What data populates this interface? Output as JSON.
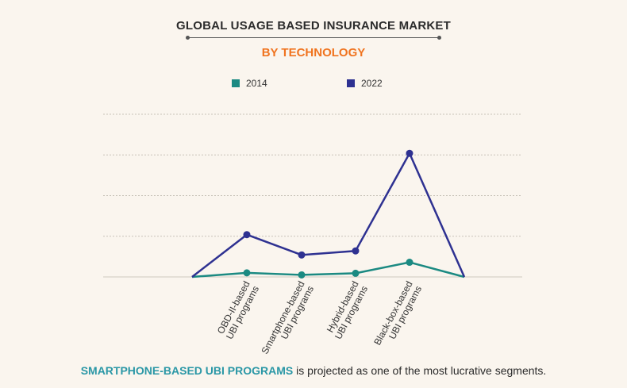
{
  "chart_data": {
    "type": "line",
    "title": "GLOBAL USAGE BASED INSURANCE MARKET",
    "subtitle": "BY TECHNOLOGY",
    "categories": [
      "",
      "OBD-II-based\nUBI programs",
      "Smartphone-based\nUBI programs",
      "Hybrid-based\nUBI programs",
      "Black-box-based\nUBI programs",
      ""
    ],
    "series": [
      {
        "name": "2014",
        "color": "#1b8a82",
        "values": [
          0,
          0.5,
          0.25,
          0.45,
          1.8,
          0
        ]
      },
      {
        "name": "2022",
        "color": "#2e3191",
        "values": [
          0,
          5.2,
          2.7,
          3.2,
          15.2,
          0
        ]
      }
    ],
    "ylim": [
      0,
      20
    ],
    "grid": true,
    "legend_position": "top"
  },
  "footer": {
    "highlight": "SMARTPHONE-BASED UBI PROGRAMS",
    "rest": " is projected as one of the most lucrative segments."
  }
}
